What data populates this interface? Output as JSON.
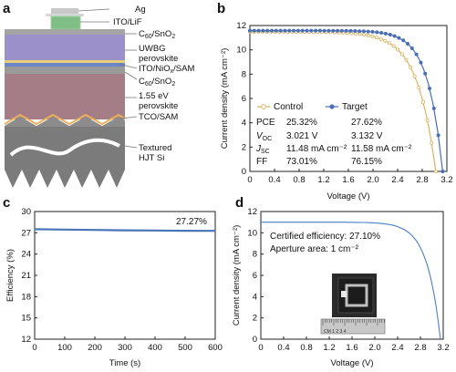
{
  "panels": {
    "a": "a",
    "b": "b",
    "c": "c",
    "d": "d"
  },
  "stack_labels": [
    {
      "lines": [
        "Ag"
      ]
    },
    {
      "lines": [
        "ITO/LiF"
      ]
    },
    {
      "lines": [
        "C",
        "60",
        "/SnO",
        "2"
      ],
      "rich": true
    },
    {
      "lines": [
        "UWBG",
        "perovskite"
      ]
    },
    {
      "lines": [
        "ITO/NiO",
        "x",
        "/SAM"
      ],
      "rich": true
    },
    {
      "lines": [
        "C",
        "60",
        "/SnO",
        "2"
      ],
      "rich": true
    },
    {
      "lines": [
        "1.55 eV",
        "perovskite"
      ]
    },
    {
      "lines": [
        "TCO/SAM"
      ]
    },
    {
      "lines": [
        "Textured",
        "HJT Si"
      ]
    }
  ],
  "colors": {
    "control": "#d9b462",
    "target": "#4a6eb7",
    "efficiency": "#4a74b8",
    "certified": "#4d7fc4"
  },
  "chart_data": [
    {
      "id": "b",
      "type": "scatter",
      "xlabel": "Voltage (V)",
      "ylabel": "Current density (mA cm⁻²)",
      "xlim": [
        0,
        3.2
      ],
      "ylim": [
        0,
        12
      ],
      "xticks": [
        "0",
        "0.4",
        "0.8",
        "1.2",
        "1.6",
        "2.0",
        "2.4",
        "2.8",
        "3.2"
      ],
      "yticks": [
        "0",
        "2",
        "4",
        "6",
        "8",
        "10",
        "12"
      ],
      "legend_position": "bottom-left",
      "series": [
        {
          "name": "Control",
          "marker": "hollow circle",
          "jsc": 11.48,
          "voc": 3.021
        },
        {
          "name": "Target",
          "marker": "filled circle",
          "jsc": 11.58,
          "voc": 3.132
        }
      ],
      "table": {
        "headers": [
          "",
          "Control",
          "Target"
        ],
        "rows": [
          {
            "label": "PCE",
            "control": "25.32%",
            "target": "27.62%"
          },
          {
            "label": "V_OC",
            "control": "3.021 V",
            "target": "3.132 V"
          },
          {
            "label": "J_SC",
            "control": "11.48 mA cm⁻²",
            "target": "11.58 mA cm⁻²"
          },
          {
            "label": "FF",
            "control": "73.01%",
            "target": "76.15%"
          }
        ]
      }
    },
    {
      "id": "c",
      "type": "line",
      "xlabel": "Time (s)",
      "ylabel": "Efficiency (%)",
      "xlim": [
        0,
        600
      ],
      "ylim": [
        12,
        30
      ],
      "xticks": [
        "0",
        "100",
        "200",
        "300",
        "400",
        "500",
        "600"
      ],
      "yticks": [
        "12",
        "15",
        "18",
        "21",
        "24",
        "27",
        "30"
      ],
      "x": [
        0,
        100,
        200,
        300,
        400,
        500,
        600
      ],
      "y": [
        27.5,
        27.45,
        27.4,
        27.35,
        27.32,
        27.29,
        27.27
      ],
      "annotation": "27.27%"
    },
    {
      "id": "d",
      "type": "line",
      "xlabel": "Voltage (V)",
      "ylabel": "Current density (mA cm⁻²)",
      "xlim": [
        0,
        3.2
      ],
      "ylim": [
        0,
        12
      ],
      "xticks": [
        "0",
        "0.4",
        "0.8",
        "1.2",
        "1.6",
        "2.0",
        "2.4",
        "2.8",
        "3.2"
      ],
      "yticks": [
        "0",
        "2",
        "4",
        "6",
        "8",
        "10",
        "12"
      ],
      "jsc": 11.0,
      "voc": 3.15,
      "annotations": [
        "Certified efficiency: 27.10%",
        "Aperture area: 1 cm⁻²"
      ]
    }
  ],
  "photo": {
    "ruler_text": "CM 1 2 3 4"
  }
}
